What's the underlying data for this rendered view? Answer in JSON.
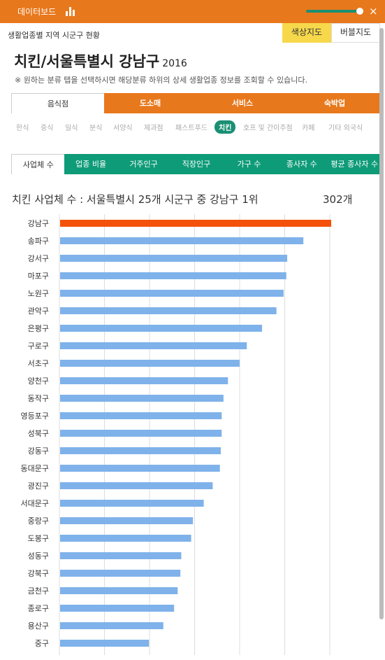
{
  "header": {
    "title": "데이터보드",
    "chart_icon": "bar-chart-icon",
    "close_icon": "close-icon",
    "accent": "#e8781c"
  },
  "subtitle": "생활업종별 지역 시군구 현황",
  "map_toggle": {
    "color_map": "색상지도",
    "bubble_map": "버블지도"
  },
  "page_title": "치킨/서울특별시 강남구",
  "year": "2016",
  "note": "※ 원하는 분류 탭을 선택하시면 해당분류 하위의 상세 생활업종 정보를 조회할 수 있습니다.",
  "categories": [
    "음식점",
    "도소매",
    "서비스",
    "숙박업"
  ],
  "subcategories": [
    "한식",
    "중식",
    "일식",
    "분식",
    "서양식",
    "제과점",
    "패스트푸드",
    "치킨",
    "호프 및 간이주점",
    "카페",
    "기타 외국식"
  ],
  "metrics": [
    "사업체 수",
    "업종 비율",
    "거주인구",
    "직장인구",
    "가구 수",
    "종사자 수",
    "평균 종사자 수"
  ],
  "rank_text": "치킨 사업체 수 : 서울특별시 25개 시군구 중 강남구 1위",
  "rank_value": "302개",
  "chart_data": {
    "type": "bar",
    "orientation": "horizontal",
    "categories": [
      "강남구",
      "송파구",
      "강서구",
      "마포구",
      "노원구",
      "관악구",
      "은평구",
      "구로구",
      "서초구",
      "양천구",
      "동작구",
      "영등포구",
      "성북구",
      "강동구",
      "동대문구",
      "광진구",
      "서대문구",
      "중랑구",
      "도봉구",
      "성동구",
      "강북구",
      "금천구",
      "종로구",
      "용산구",
      "중구"
    ],
    "values": [
      302,
      271,
      253,
      252,
      249,
      241,
      225,
      208,
      200,
      187,
      182,
      180,
      180,
      179,
      178,
      170,
      160,
      148,
      146,
      135,
      134,
      131,
      127,
      115,
      99
    ],
    "highlight_index": 0,
    "highlight_color": "#f4510a",
    "bar_color": "#7fb2ea",
    "grid": true
  }
}
